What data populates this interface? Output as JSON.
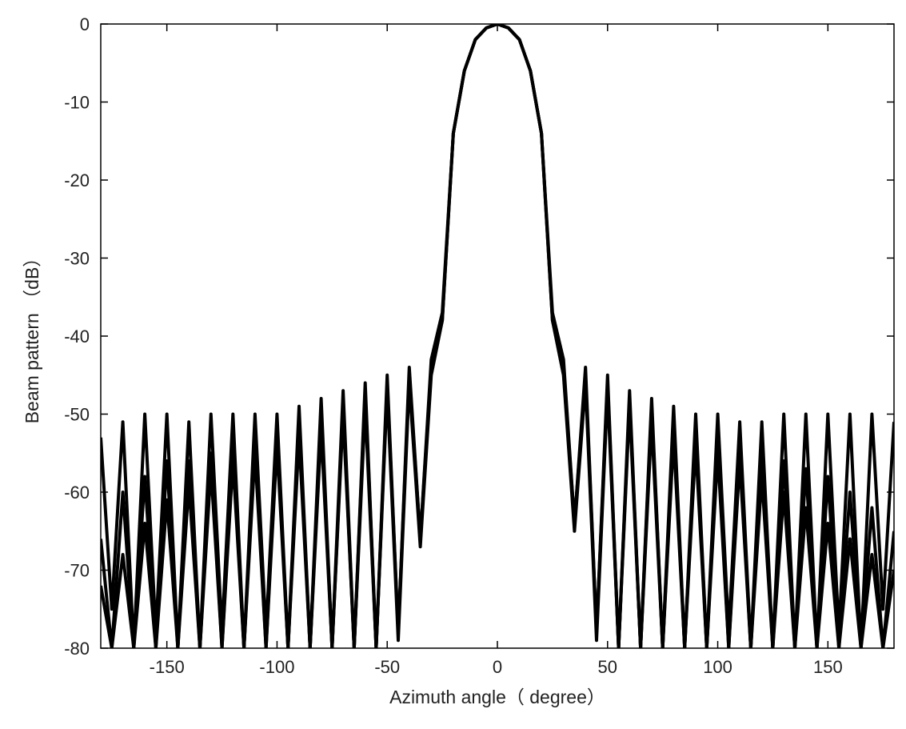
{
  "chart_data": {
    "type": "line",
    "title": "",
    "xlabel": "Azimuth angle（ degree）",
    "ylabel": "Beam pattern （dB）",
    "xlim": [
      -180,
      180
    ],
    "ylim": [
      -80,
      0
    ],
    "xticks": [
      -150,
      -100,
      -50,
      0,
      50,
      100,
      150
    ],
    "yticks": [
      0,
      -10,
      -20,
      -30,
      -40,
      -50,
      -60,
      -70,
      -80
    ],
    "grid": false,
    "legend": "none",
    "line_color": "#000000",
    "series": [
      {
        "x": [
          -180,
          -175,
          -170,
          -165,
          -160,
          -155,
          -150,
          -145,
          -140,
          -135,
          -130,
          -125,
          -120,
          -115,
          -110,
          -105,
          -100,
          -95,
          -90,
          -85,
          -80,
          -75,
          -70,
          -65,
          -60,
          -55,
          -50,
          -45,
          -40,
          -35,
          -30,
          -25,
          -20,
          -15,
          -10,
          -5,
          0,
          5,
          10,
          15,
          20,
          25,
          30,
          35,
          40,
          45,
          50,
          55,
          60,
          65,
          70,
          75,
          80,
          85,
          90,
          95,
          100,
          105,
          110,
          115,
          120,
          125,
          130,
          135,
          140,
          145,
          150,
          155,
          160,
          165,
          170,
          175,
          180
        ],
        "values": [
          -53,
          -75,
          -51,
          -80,
          -50,
          -78,
          -50,
          -80,
          -51,
          -80,
          -50,
          -78,
          -50,
          -80,
          -50,
          -78,
          -50,
          -80,
          -49,
          -80,
          -48,
          -80,
          -47,
          -80,
          -46,
          -80,
          -45,
          -78,
          -44,
          -66,
          -43,
          -37,
          -14,
          -6,
          -2,
          -0.5,
          0,
          -0.5,
          -2,
          -6,
          -14,
          -37,
          -43,
          -64,
          -44,
          -78,
          -45,
          -80,
          -47,
          -80,
          -48,
          -80,
          -49,
          -80,
          -50,
          -80,
          -50,
          -78,
          -51,
          -80,
          -51,
          -80,
          -50,
          -80,
          -50,
          -80,
          -50,
          -78,
          -50,
          -80,
          -50,
          -75,
          -51
        ]
      },
      {
        "x": [
          -180,
          -175,
          -170,
          -165,
          -160,
          -155,
          -150,
          -145,
          -140,
          -135,
          -130,
          -125,
          -120,
          -115,
          -110,
          -105,
          -100,
          -95,
          -90,
          -85,
          -80,
          -75,
          -70,
          -65,
          -60,
          -55,
          -50,
          -45,
          -40,
          -35,
          -30,
          -25,
          -20,
          -15,
          -10,
          -5,
          0,
          5,
          10,
          15,
          20,
          25,
          30,
          35,
          40,
          45,
          50,
          55,
          60,
          65,
          70,
          75,
          80,
          85,
          90,
          95,
          100,
          105,
          110,
          115,
          120,
          125,
          130,
          135,
          140,
          145,
          150,
          155,
          160,
          165,
          170,
          175,
          180
        ],
        "values": [
          -66,
          -80,
          -60,
          -80,
          -58,
          -80,
          -56,
          -80,
          -56,
          -80,
          -55,
          -80,
          -54,
          -80,
          -53,
          -80,
          -52,
          -80,
          -51,
          -80,
          -50,
          -80,
          -49,
          -80,
          -47,
          -80,
          -46,
          -78,
          -45,
          -66,
          -44,
          -38,
          -14,
          -6,
          -2,
          -0.5,
          0,
          -0.5,
          -2,
          -6,
          -14,
          -38,
          -44,
          -64,
          -45,
          -78,
          -46,
          -80,
          -48,
          -80,
          -49,
          -80,
          -51,
          -80,
          -52,
          -80,
          -53,
          -80,
          -54,
          -80,
          -55,
          -80,
          -56,
          -80,
          -57,
          -80,
          -58,
          -80,
          -60,
          -80,
          -62,
          -80,
          -65
        ]
      },
      {
        "x": [
          -180,
          -175,
          -170,
          -165,
          -160,
          -155,
          -150,
          -145,
          -140,
          -135,
          -130,
          -125,
          -120,
          -115,
          -110,
          -105,
          -100,
          -95,
          -90,
          -85,
          -80,
          -75,
          -70,
          -65,
          -60,
          -55,
          -50,
          -45,
          -40,
          -35,
          -30,
          -25,
          -20,
          -15,
          -10,
          -5,
          0,
          5,
          10,
          15,
          20,
          25,
          30,
          35,
          40,
          45,
          50,
          55,
          60,
          65,
          70,
          75,
          80,
          85,
          90,
          95,
          100,
          105,
          110,
          115,
          120,
          125,
          130,
          135,
          140,
          145,
          150,
          155,
          160,
          165,
          170,
          175,
          180
        ],
        "values": [
          -72,
          -80,
          -68,
          -80,
          -64,
          -80,
          -61,
          -80,
          -59,
          -80,
          -57,
          -80,
          -56,
          -80,
          -55,
          -80,
          -54,
          -80,
          -53,
          -80,
          -52,
          -80,
          -50,
          -80,
          -49,
          -80,
          -47,
          -79,
          -46,
          -67,
          -45,
          -38,
          -14,
          -6,
          -2,
          -0.5,
          0,
          -0.5,
          -2,
          -6,
          -14,
          -38,
          -45,
          -65,
          -46,
          -79,
          -47,
          -80,
          -49,
          -80,
          -51,
          -80,
          -53,
          -80,
          -54,
          -80,
          -55,
          -80,
          -56,
          -80,
          -58,
          -80,
          -60,
          -80,
          -62,
          -80,
          -64,
          -80,
          -66,
          -80,
          -68,
          -80,
          -70
        ]
      }
    ]
  }
}
